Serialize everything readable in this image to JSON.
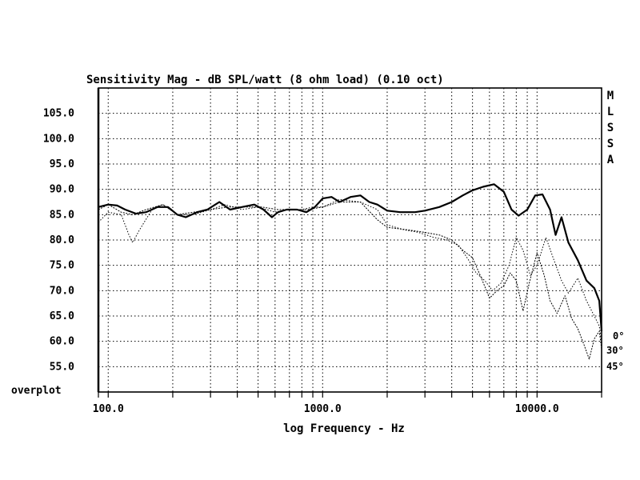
{
  "chart_data": {
    "type": "line",
    "title": "Sensitivity Mag - dB SPL/watt (8 ohm load) (0.10 oct)",
    "xlabel": "log Frequency - Hz",
    "ylabel": "",
    "x_scale": "log",
    "xlim": [
      90,
      20000
    ],
    "ylim": [
      50,
      110
    ],
    "x_ticks": [
      {
        "value": 100,
        "label": "100.0"
      },
      {
        "value": 1000,
        "label": "1000.0"
      },
      {
        "value": 10000,
        "label": "10000.0"
      }
    ],
    "y_ticks": [
      {
        "value": 105,
        "label": "105.0"
      },
      {
        "value": 100,
        "label": "100.0"
      },
      {
        "value": 95,
        "label": "95.0"
      },
      {
        "value": 90,
        "label": "90.0"
      },
      {
        "value": 85,
        "label": "85.0"
      },
      {
        "value": 80,
        "label": "80.0"
      },
      {
        "value": 75,
        "label": "75.0"
      },
      {
        "value": 70,
        "label": "70.0"
      },
      {
        "value": 65,
        "label": "65.0"
      },
      {
        "value": 60,
        "label": "60.0"
      },
      {
        "value": 55,
        "label": "55.0"
      }
    ],
    "grid": true,
    "overplot_label": "overplot",
    "side_letters": [
      "M",
      "L",
      "S",
      "S",
      "A"
    ],
    "angle_labels": [
      "0°",
      "30°",
      "45°"
    ],
    "series": [
      {
        "name": "0°",
        "style": "solid",
        "points": [
          [
            90,
            86.5
          ],
          [
            100,
            87
          ],
          [
            110,
            86.8
          ],
          [
            120,
            86
          ],
          [
            135,
            85.2
          ],
          [
            150,
            85.5
          ],
          [
            170,
            86.5
          ],
          [
            190,
            86.5
          ],
          [
            210,
            85
          ],
          [
            230,
            84.5
          ],
          [
            260,
            85.5
          ],
          [
            290,
            86
          ],
          [
            330,
            87.5
          ],
          [
            370,
            86
          ],
          [
            420,
            86.5
          ],
          [
            480,
            87
          ],
          [
            530,
            86
          ],
          [
            580,
            84.5
          ],
          [
            620,
            85.5
          ],
          [
            680,
            86
          ],
          [
            760,
            86
          ],
          [
            840,
            85.5
          ],
          [
            920,
            86.5
          ],
          [
            1000,
            88.2
          ],
          [
            1100,
            88.5
          ],
          [
            1200,
            87.5
          ],
          [
            1350,
            88.5
          ],
          [
            1500,
            88.8
          ],
          [
            1650,
            87.5
          ],
          [
            1800,
            87
          ],
          [
            2000,
            85.8
          ],
          [
            2300,
            85.5
          ],
          [
            2700,
            85.5
          ],
          [
            3000,
            85.8
          ],
          [
            3500,
            86.5
          ],
          [
            4000,
            87.5
          ],
          [
            4500,
            88.8
          ],
          [
            5000,
            89.8
          ],
          [
            5600,
            90.5
          ],
          [
            6300,
            91
          ],
          [
            7000,
            89.5
          ],
          [
            7600,
            86
          ],
          [
            8200,
            84.8
          ],
          [
            9000,
            86
          ],
          [
            9800,
            88.8
          ],
          [
            10600,
            89
          ],
          [
            11500,
            86
          ],
          [
            12200,
            81
          ],
          [
            13000,
            84.5
          ],
          [
            14000,
            79.5
          ],
          [
            15500,
            76
          ],
          [
            17000,
            72
          ],
          [
            18500,
            70.5
          ],
          [
            19500,
            68
          ],
          [
            20000,
            62
          ]
        ]
      },
      {
        "name": "30°",
        "style": "dotted",
        "points": [
          [
            90,
            83.5
          ],
          [
            100,
            85.5
          ],
          [
            115,
            85
          ],
          [
            125,
            81
          ],
          [
            130,
            79.5
          ],
          [
            140,
            82
          ],
          [
            160,
            86
          ],
          [
            180,
            87
          ],
          [
            210,
            85
          ],
          [
            250,
            85
          ],
          [
            300,
            86
          ],
          [
            350,
            87
          ],
          [
            420,
            86
          ],
          [
            500,
            86.5
          ],
          [
            600,
            85.5
          ],
          [
            700,
            86
          ],
          [
            800,
            86
          ],
          [
            900,
            86.5
          ],
          [
            1000,
            86.5
          ],
          [
            1200,
            88
          ],
          [
            1500,
            87.5
          ],
          [
            1800,
            86
          ],
          [
            2000,
            83
          ],
          [
            2400,
            82
          ],
          [
            2800,
            81.5
          ],
          [
            3300,
            80.5
          ],
          [
            3800,
            80
          ],
          [
            4300,
            79
          ],
          [
            4800,
            76
          ],
          [
            5200,
            73.5
          ],
          [
            5700,
            72
          ],
          [
            6200,
            70
          ],
          [
            6800,
            71.5
          ],
          [
            7400,
            75
          ],
          [
            8000,
            80.5
          ],
          [
            8600,
            78
          ],
          [
            9300,
            73
          ],
          [
            10000,
            75
          ],
          [
            11000,
            80.5
          ],
          [
            12000,
            76
          ],
          [
            13000,
            72
          ],
          [
            14000,
            69.5
          ],
          [
            15500,
            72.5
          ],
          [
            17000,
            68
          ],
          [
            18500,
            65
          ],
          [
            19500,
            63
          ],
          [
            20000,
            60
          ]
        ]
      },
      {
        "name": "45°",
        "style": "dotted",
        "points": [
          [
            90,
            86
          ],
          [
            100,
            87
          ],
          [
            115,
            85.5
          ],
          [
            130,
            85
          ],
          [
            150,
            86
          ],
          [
            180,
            87
          ],
          [
            210,
            85
          ],
          [
            250,
            85.5
          ],
          [
            300,
            86
          ],
          [
            360,
            86.5
          ],
          [
            430,
            86.5
          ],
          [
            520,
            86.5
          ],
          [
            620,
            86
          ],
          [
            720,
            86
          ],
          [
            850,
            86
          ],
          [
            1000,
            86.5
          ],
          [
            1200,
            87.5
          ],
          [
            1500,
            87.5
          ],
          [
            1800,
            84
          ],
          [
            2000,
            82.5
          ],
          [
            2500,
            82
          ],
          [
            3000,
            81.5
          ],
          [
            3500,
            81
          ],
          [
            4000,
            80
          ],
          [
            4500,
            78
          ],
          [
            5000,
            76.5
          ],
          [
            5500,
            72.5
          ],
          [
            6000,
            68.5
          ],
          [
            6500,
            70
          ],
          [
            7000,
            71
          ],
          [
            7500,
            73.5
          ],
          [
            8000,
            72
          ],
          [
            8600,
            66
          ],
          [
            9200,
            71.5
          ],
          [
            10000,
            77.5
          ],
          [
            10800,
            73
          ],
          [
            11500,
            68
          ],
          [
            12400,
            65.5
          ],
          [
            13500,
            69
          ],
          [
            14500,
            64.5
          ],
          [
            15500,
            62.5
          ],
          [
            16500,
            59.5
          ],
          [
            17500,
            56.5
          ],
          [
            18500,
            60.5
          ],
          [
            19500,
            62
          ],
          [
            20000,
            58.5
          ]
        ]
      }
    ]
  }
}
